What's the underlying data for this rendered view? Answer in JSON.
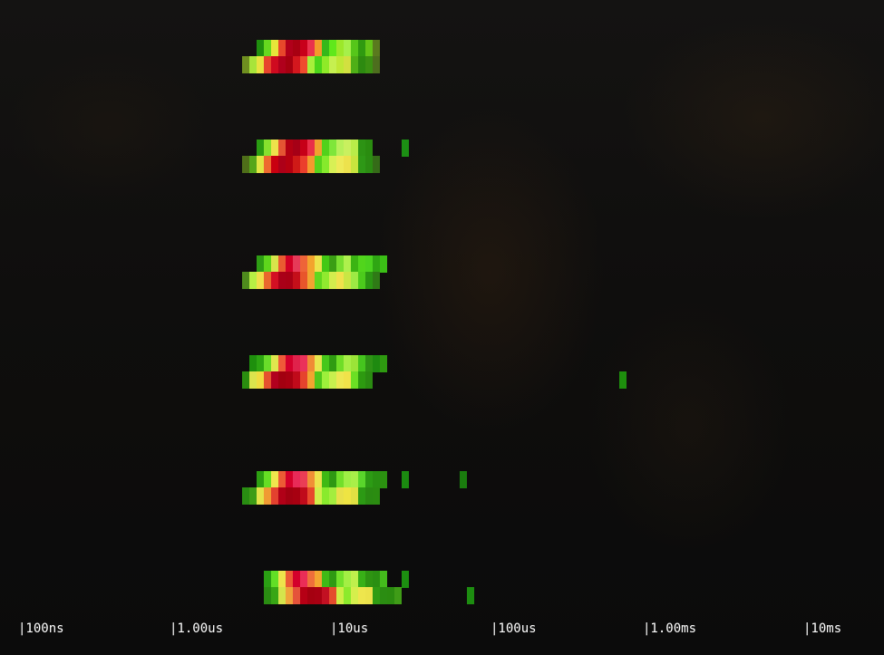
{
  "chart_data": {
    "type": "heatmap",
    "x_scale": "log",
    "x_ticks": [
      "|100ns",
      "|1.00us",
      "|10us",
      "|100us",
      "|1.00ms",
      "|10ms"
    ],
    "rows": [
      {
        "top": [
          "",
          "",
          "",
          "#1f8f0e",
          "#66d81f",
          "#e6e63a",
          "#e7482b",
          "#b1001a",
          "#a80012",
          "#c8001a",
          "#e9324d",
          "#f39a2b",
          "#35b81a",
          "#5fe81b",
          "#9ce82a",
          "#a6f04a",
          "#56c61a",
          "#2f9a10",
          "#63c418",
          "#5a7a1e",
          ""
        ],
        "bottom": [
          "",
          "#6f8e20",
          "#a8e43a",
          "#e8e33f",
          "#e7442d",
          "#cf0a1f",
          "#b0001c",
          "#a60010",
          "#d4171e",
          "#ef4b2e",
          "#a7f03b",
          "#4bd51a",
          "#8fea28",
          "#c6f050",
          "#c0e836",
          "#d2e040",
          "#4faf17",
          "#2d8a10",
          "#3b9112",
          "#4d6e1e",
          ""
        ]
      },
      {
        "top": [
          "",
          "",
          "",
          "#2a9c12",
          "#86e12e",
          "#ede24b",
          "#e45533",
          "#b20012",
          "#a60016",
          "#c60018",
          "#e92f49",
          "#f1a12f",
          "#52d11b",
          "#7ee63a",
          "#b7f05a",
          "#c9f05f",
          "#b9ec49",
          "#2d9314",
          "#2a8c10",
          "",
          "",
          "",
          "",
          "#1c8f14"
        ],
        "bottom": [
          "",
          "#4f6e19",
          "#57a61a",
          "#e1e744",
          "#ee6a2f",
          "#c90010",
          "#ad0018",
          "#b50010",
          "#cf1a17",
          "#eb3f2c",
          "#f49a2e",
          "#57d21b",
          "#86ea2c",
          "#d8f055",
          "#eeea58",
          "#ede24d",
          "#c8e43e",
          "#2e9816",
          "#2b8c12",
          "#356b18",
          ""
        ]
      },
      {
        "top": [
          "",
          "",
          "",
          "#2e9d14",
          "#5ed61c",
          "#d7e54b",
          "#ea5b31",
          "#d20025",
          "#e63a58",
          "#ee6438",
          "#f3a32d",
          "#ece34c",
          "#42c814",
          "#3a9e14",
          "#77de30",
          "#aef04d",
          "#3bb413",
          "#51d51c",
          "#4bd21f",
          "#2fa613",
          "#3bbf16",
          ""
        ],
        "bottom": [
          "",
          "#4e8b1d",
          "#b7f044",
          "#f0e049",
          "#e9672d",
          "#d31023",
          "#aa0018",
          "#a90015",
          "#c40f1a",
          "#e8552b",
          "#f1a431",
          "#61d71e",
          "#90ea2f",
          "#d3ed4d",
          "#f0e24c",
          "#c9e744",
          "#9dea44",
          "#4ccb1c",
          "#2b9613",
          "#2f7a16",
          ""
        ]
      },
      {
        "top": [
          "",
          "",
          "#1e8f0d",
          "#2da512",
          "#69dc2a",
          "#dfe64e",
          "#ef5a39",
          "#d4002c",
          "#e0224b",
          "#ea315a",
          "#f08b35",
          "#e8e64f",
          "#46c71b",
          "#2f9b12",
          "#6fdd27",
          "#a7ee46",
          "#9be438",
          "#45c51e",
          "#2e9315",
          "#1e8a10",
          "#2e9a10",
          "",
          "",
          "",
          "",
          "",
          "",
          "",
          "",
          "",
          ""
        ],
        "bottom": [
          "",
          "#2a8d0f",
          "#dbe44d",
          "#f0dc3f",
          "#e5512e",
          "#b1001e",
          "#a20010",
          "#a80011",
          "#c00a1a",
          "#e6432d",
          "#f0a530",
          "#4fc71b",
          "#9df03b",
          "#c8f04e",
          "#ede752",
          "#f0e24a",
          "#6bdf24",
          "#2d9a10",
          "#2a8b11",
          "",
          "",
          "",
          "",
          "",
          "",
          "",
          "",
          "",
          "",
          "",
          "",
          "",
          "",
          "",
          "",
          "",
          "",
          "",
          "",
          "",
          "",
          "",
          "",
          "",
          "",
          "",
          "",
          "",
          "",
          "",
          "",
          "",
          "",
          "#1e8f0d"
        ]
      },
      {
        "top": [
          "",
          "",
          "",
          "#2d9f12",
          "#66de24",
          "#f0e64d",
          "#ec5b35",
          "#d4002a",
          "#e82a58",
          "#ea3d55",
          "#f09036",
          "#ece34c",
          "#3fb914",
          "#2f9813",
          "#72df2a",
          "#9fef45",
          "#a8ef49",
          "#59d62b",
          "#2c9b14",
          "#299012",
          "#2b9110",
          "",
          "",
          "#1b8a10",
          "",
          "",
          "",
          "",
          "",
          "",
          "",
          "#1a7d0e"
        ],
        "bottom": [
          "",
          "#298d12",
          "#3e9c17",
          "#e4e44a",
          "#f09b33",
          "#e3412f",
          "#b10017",
          "#a20011",
          "#a70011",
          "#c00b1b",
          "#e8492c",
          "#d1ef4b",
          "#89ea2d",
          "#a4ed3e",
          "#e8e04a",
          "#eee443",
          "#e0e043",
          "#2c9a14",
          "#2a8b12",
          "#2b8c11",
          ""
        ]
      },
      {
        "top": [
          "",
          "",
          "",
          "",
          "#2aa013",
          "#62df26",
          "#eee34c",
          "#ec5a35",
          "#d3002b",
          "#ea2d57",
          "#ef6f3b",
          "#f4a530",
          "#3fba16",
          "#2f9a13",
          "#72e12b",
          "#a3ef44",
          "#bff04c",
          "#38b017",
          "#2e9412",
          "#2a8f12",
          "#44bb1c",
          "",
          "",
          "#1c8f10",
          ""
        ],
        "bottom": [
          "",
          "",
          "",
          "",
          "#2a8d12",
          "#38a615",
          "#d5e44c",
          "#f0a33a",
          "#e5533a",
          "#b60015",
          "#a50010",
          "#a80012",
          "#c21022",
          "#e44c2c",
          "#cfee46",
          "#8cea2c",
          "#d5ef4c",
          "#eee64d",
          "#ece34b",
          "#2f9c13",
          "#2b8d12",
          "#2b8c10",
          "#3f9c17",
          "",
          "",
          "",
          "",
          "",
          "",
          "",
          "",
          "",
          "#1d8d10"
        ]
      }
    ]
  }
}
